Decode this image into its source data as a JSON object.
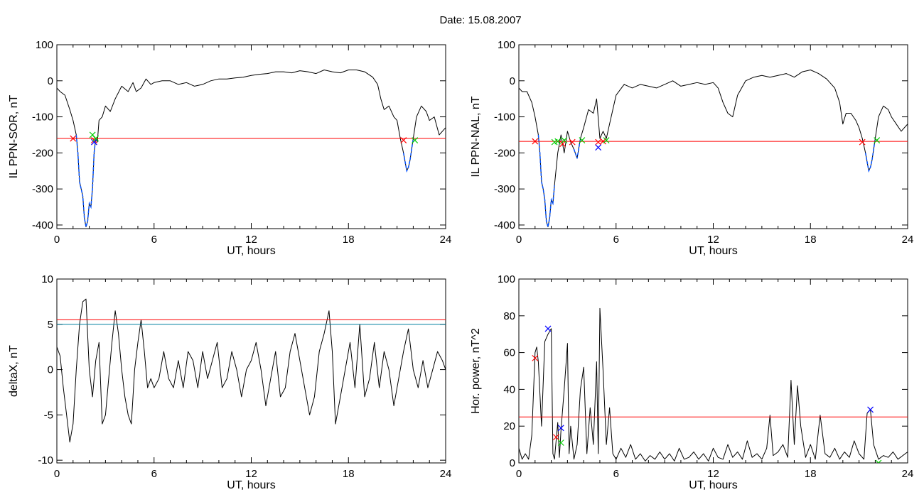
{
  "header": {
    "title": "Date:  15.08.2007"
  },
  "chart_data": [
    {
      "id": "il-ppn-sor",
      "type": "line",
      "xlabel": "UT, hours",
      "ylabel": "IL PPN-SOR, nT",
      "xlim": [
        0,
        24
      ],
      "ylim": [
        -410,
        100
      ],
      "xticks": [
        0,
        6,
        12,
        18,
        24
      ],
      "yticks": [
        -400,
        -300,
        -200,
        -100,
        0,
        100
      ],
      "threshold": {
        "value": -160,
        "color": "#ff0000"
      },
      "highlight_color": "#0050ff",
      "highlight_ranges": [
        [
          1.1,
          2.4
        ],
        [
          21.4,
          22.0
        ]
      ],
      "series": [
        {
          "color": "#000000",
          "x": [
            0,
            0.2,
            0.5,
            0.8,
            1.0,
            1.2,
            1.3,
            1.4,
            1.5,
            1.6,
            1.7,
            1.8,
            1.9,
            2.0,
            2.1,
            2.2,
            2.3,
            2.4,
            2.5,
            2.6,
            2.8,
            3.0,
            3.3,
            3.6,
            4.0,
            4.4,
            4.7,
            4.9,
            5.2,
            5.5,
            5.8,
            6.0,
            6.5,
            7.0,
            7.5,
            8.0,
            8.5,
            9.0,
            9.5,
            10.0,
            10.5,
            11.0,
            11.5,
            12.0,
            12.5,
            13.0,
            13.5,
            14.0,
            14.5,
            15.0,
            15.5,
            16.0,
            16.5,
            17.0,
            17.5,
            18.0,
            18.5,
            19.0,
            19.5,
            19.8,
            20.0,
            20.2,
            20.5,
            20.8,
            21.0,
            21.2,
            21.4,
            21.6,
            21.7,
            21.8,
            22.0,
            22.2,
            22.5,
            22.8,
            23.0,
            23.3,
            23.6,
            24.0
          ],
          "values": [
            -20,
            -30,
            -40,
            -80,
            -110,
            -150,
            -200,
            -280,
            -300,
            -320,
            -380,
            -405,
            -390,
            -340,
            -350,
            -300,
            -200,
            -160,
            -170,
            -110,
            -100,
            -70,
            -85,
            -50,
            -15,
            -30,
            -5,
            -30,
            -20,
            5,
            -10,
            -5,
            0,
            0,
            -10,
            -5,
            -15,
            -10,
            0,
            5,
            5,
            8,
            10,
            15,
            18,
            20,
            25,
            25,
            22,
            28,
            25,
            20,
            30,
            25,
            22,
            30,
            30,
            25,
            10,
            -10,
            -50,
            -80,
            -70,
            -100,
            -110,
            -160,
            -200,
            -250,
            -240,
            -220,
            -160,
            -100,
            -70,
            -85,
            -110,
            -100,
            -150,
            -130
          ]
        }
      ],
      "markers": [
        {
          "x": 1.0,
          "y": -160,
          "color": "#ff0000"
        },
        {
          "x": 2.2,
          "y": -150,
          "color": "#00cc00"
        },
        {
          "x": 2.3,
          "y": -165,
          "color": "#ff0000"
        },
        {
          "x": 2.3,
          "y": -170,
          "color": "#0000ff"
        },
        {
          "x": 2.4,
          "y": -160,
          "color": "#00cc00"
        },
        {
          "x": 21.4,
          "y": -165,
          "color": "#ff0000"
        },
        {
          "x": 22.1,
          "y": -165,
          "color": "#00cc00"
        }
      ]
    },
    {
      "id": "il-ppn-nal",
      "type": "line",
      "xlabel": "UT, hours",
      "ylabel": "IL PPN-NAL, nT",
      "xlim": [
        0,
        24
      ],
      "ylim": [
        -410,
        100
      ],
      "xticks": [
        0,
        6,
        12,
        18,
        24
      ],
      "yticks": [
        -400,
        -300,
        -200,
        -100,
        0,
        100
      ],
      "threshold": {
        "value": -168,
        "color": "#ff0000"
      },
      "highlight_color": "#0050ff",
      "highlight_ranges": [
        [
          1.1,
          2.3
        ],
        [
          3.3,
          3.8
        ],
        [
          4.9,
          5.1
        ],
        [
          21.4,
          22.0
        ]
      ],
      "series": [
        {
          "color": "#000000",
          "x": [
            0,
            0.2,
            0.5,
            0.8,
            1.0,
            1.2,
            1.3,
            1.4,
            1.5,
            1.6,
            1.7,
            1.8,
            1.9,
            2.0,
            2.1,
            2.2,
            2.4,
            2.6,
            2.8,
            3.0,
            3.2,
            3.4,
            3.6,
            3.8,
            4.0,
            4.3,
            4.6,
            4.8,
            5.0,
            5.2,
            5.4,
            5.6,
            5.8,
            6.0,
            6.5,
            7.0,
            7.5,
            8.0,
            8.5,
            9.0,
            9.5,
            10.0,
            10.5,
            11.0,
            11.5,
            12.0,
            12.3,
            12.6,
            12.9,
            13.2,
            13.5,
            14.0,
            14.5,
            15.0,
            15.5,
            16.0,
            16.5,
            17.0,
            17.5,
            18.0,
            18.5,
            19.0,
            19.5,
            19.8,
            20.0,
            20.2,
            20.5,
            20.8,
            21.0,
            21.2,
            21.4,
            21.6,
            21.7,
            21.8,
            22.0,
            22.2,
            22.5,
            22.8,
            23.0,
            23.3,
            23.6,
            24.0
          ],
          "values": [
            -20,
            -30,
            -30,
            -60,
            -100,
            -150,
            -200,
            -280,
            -300,
            -330,
            -390,
            -405,
            -380,
            -330,
            -340,
            -290,
            -200,
            -150,
            -200,
            -140,
            -170,
            -190,
            -215,
            -160,
            -130,
            -80,
            -90,
            -50,
            -160,
            -140,
            -160,
            -120,
            -80,
            -40,
            -10,
            -20,
            -10,
            -15,
            -20,
            -10,
            0,
            -15,
            -10,
            -5,
            -10,
            -5,
            -20,
            -60,
            -90,
            -100,
            -40,
            0,
            10,
            15,
            10,
            15,
            20,
            10,
            25,
            30,
            20,
            5,
            -20,
            -60,
            -120,
            -90,
            -90,
            -110,
            -130,
            -160,
            -200,
            -250,
            -240,
            -220,
            -160,
            -100,
            -70,
            -80,
            -100,
            -120,
            -140,
            -120
          ]
        }
      ],
      "markers": [
        {
          "x": 1.0,
          "y": -168,
          "color": "#ff0000"
        },
        {
          "x": 2.2,
          "y": -170,
          "color": "#00cc00"
        },
        {
          "x": 2.4,
          "y": -168,
          "color": "#00cc00"
        },
        {
          "x": 2.7,
          "y": -175,
          "color": "#ff0000"
        },
        {
          "x": 2.8,
          "y": -165,
          "color": "#00cc00"
        },
        {
          "x": 3.3,
          "y": -170,
          "color": "#ff0000"
        },
        {
          "x": 3.9,
          "y": -165,
          "color": "#00cc00"
        },
        {
          "x": 4.9,
          "y": -170,
          "color": "#ff0000"
        },
        {
          "x": 4.9,
          "y": -185,
          "color": "#0000ff"
        },
        {
          "x": 5.2,
          "y": -168,
          "color": "#ff0000"
        },
        {
          "x": 5.4,
          "y": -165,
          "color": "#00cc00"
        },
        {
          "x": 21.2,
          "y": -170,
          "color": "#ff0000"
        },
        {
          "x": 22.1,
          "y": -165,
          "color": "#00cc00"
        }
      ]
    },
    {
      "id": "deltax",
      "type": "line",
      "xlabel": "UT, hours",
      "ylabel": "deltaX, nT",
      "xlim": [
        0,
        24
      ],
      "ylim": [
        -10.3,
        10
      ],
      "xticks": [
        0,
        6,
        12,
        18,
        24
      ],
      "yticks": [
        -10,
        -5,
        0,
        5,
        10
      ],
      "ytick_labels": [
        "-10",
        "-5",
        "0",
        "5",
        "10"
      ],
      "thresholds": [
        {
          "value": 5.5,
          "color": "#ff0000"
        },
        {
          "value": 5.0,
          "color": "#0080a0"
        }
      ],
      "series": [
        {
          "color": "#000000",
          "x": [
            0,
            0.2,
            0.4,
            0.6,
            0.8,
            1.0,
            1.2,
            1.4,
            1.6,
            1.8,
            2.0,
            2.2,
            2.4,
            2.6,
            2.8,
            3.0,
            3.2,
            3.4,
            3.6,
            3.8,
            4.0,
            4.2,
            4.4,
            4.6,
            4.8,
            5.0,
            5.2,
            5.4,
            5.6,
            5.8,
            6.0,
            6.3,
            6.6,
            6.9,
            7.2,
            7.5,
            7.8,
            8.1,
            8.4,
            8.7,
            9.0,
            9.3,
            9.6,
            9.9,
            10.2,
            10.5,
            10.8,
            11.1,
            11.4,
            11.7,
            12.0,
            12.3,
            12.6,
            12.9,
            13.2,
            13.5,
            13.8,
            14.1,
            14.4,
            14.7,
            15.0,
            15.3,
            15.6,
            15.9,
            16.2,
            16.5,
            16.8,
            17.0,
            17.2,
            17.5,
            17.8,
            18.1,
            18.4,
            18.7,
            19.0,
            19.3,
            19.6,
            19.9,
            20.2,
            20.5,
            20.8,
            21.1,
            21.4,
            21.7,
            22.0,
            22.3,
            22.6,
            22.9,
            23.2,
            23.5,
            23.8,
            24.0
          ],
          "values": [
            2.5,
            1.5,
            -2,
            -5,
            -8,
            -6,
            0,
            5,
            7.5,
            7.8,
            0,
            -3,
            1,
            3,
            -6,
            -5,
            -1,
            3,
            6.5,
            4,
            0,
            -3,
            -5,
            -6,
            0,
            3,
            5.5,
            2,
            -2,
            -1,
            -2,
            -1,
            2,
            -1,
            -2,
            1,
            -2,
            2,
            1,
            -2,
            2,
            -1,
            1,
            3,
            -2,
            -1,
            2,
            0,
            -3,
            0,
            1,
            3,
            0,
            -4,
            -1,
            2,
            -3,
            -2,
            2,
            4,
            1,
            -2,
            -5,
            -3,
            2,
            4,
            6.5,
            2,
            -6,
            -3,
            0,
            3,
            -2,
            5,
            -3,
            -1,
            3,
            -2,
            2,
            0,
            -4,
            -1,
            2,
            4.5,
            0,
            -2,
            1,
            -2,
            0,
            2,
            1,
            0
          ]
        }
      ],
      "markers": []
    },
    {
      "id": "hor-power",
      "type": "line",
      "xlabel": "UT, hours",
      "ylabel": "Hor. power, nT^2",
      "xlim": [
        0,
        24
      ],
      "ylim": [
        0,
        100
      ],
      "xticks": [
        0,
        6,
        12,
        18,
        24
      ],
      "yticks": [
        0,
        20,
        40,
        60,
        80,
        100
      ],
      "threshold": {
        "value": 25,
        "color": "#ff0000"
      },
      "series": [
        {
          "color": "#000000",
          "x": [
            0,
            0.2,
            0.4,
            0.6,
            0.8,
            1.0,
            1.1,
            1.2,
            1.4,
            1.6,
            1.8,
            2.0,
            2.1,
            2.2,
            2.4,
            2.5,
            2.6,
            2.8,
            3.0,
            3.1,
            3.2,
            3.4,
            3.6,
            3.8,
            4.0,
            4.2,
            4.4,
            4.6,
            4.8,
            4.9,
            5.0,
            5.2,
            5.4,
            5.6,
            5.8,
            6.0,
            6.3,
            6.6,
            6.9,
            7.2,
            7.5,
            7.8,
            8.1,
            8.4,
            8.7,
            9.0,
            9.3,
            9.6,
            9.9,
            10.2,
            10.5,
            10.8,
            11.1,
            11.4,
            11.7,
            12.0,
            12.3,
            12.6,
            12.9,
            13.2,
            13.5,
            13.8,
            14.1,
            14.4,
            14.7,
            15.0,
            15.3,
            15.5,
            15.7,
            16.0,
            16.3,
            16.6,
            16.8,
            17.0,
            17.2,
            17.4,
            17.7,
            18.0,
            18.3,
            18.6,
            18.9,
            19.2,
            19.5,
            19.8,
            20.1,
            20.4,
            20.7,
            21.0,
            21.3,
            21.5,
            21.7,
            21.9,
            22.2,
            22.5,
            22.8,
            23.1,
            23.4,
            23.7,
            24.0
          ],
          "values": [
            8,
            2,
            5,
            2,
            15,
            60,
            63,
            55,
            20,
            66,
            70,
            73,
            5,
            2,
            22,
            3,
            18,
            40,
            65,
            5,
            20,
            2,
            10,
            40,
            52,
            5,
            30,
            10,
            55,
            5,
            84,
            50,
            10,
            30,
            5,
            2,
            8,
            3,
            10,
            2,
            5,
            1,
            4,
            2,
            6,
            2,
            5,
            1,
            8,
            2,
            3,
            6,
            2,
            5,
            1,
            8,
            3,
            2,
            10,
            3,
            6,
            2,
            12,
            3,
            5,
            2,
            8,
            26,
            4,
            6,
            10,
            3,
            45,
            10,
            42,
            20,
            3,
            10,
            2,
            26,
            5,
            3,
            8,
            2,
            6,
            3,
            12,
            5,
            2,
            27,
            29,
            10,
            2,
            4,
            3,
            6,
            2,
            4,
            6
          ]
        }
      ],
      "markers": [
        {
          "x": 1.0,
          "y": 57,
          "color": "#ff0000"
        },
        {
          "x": 1.8,
          "y": 73,
          "color": "#0000ff"
        },
        {
          "x": 2.3,
          "y": 14,
          "color": "#ff0000"
        },
        {
          "x": 2.6,
          "y": 19,
          "color": "#0000ff"
        },
        {
          "x": 2.6,
          "y": 11,
          "color": "#00cc00"
        },
        {
          "x": 21.7,
          "y": 29,
          "color": "#0000ff"
        },
        {
          "x": 22.2,
          "y": 0,
          "color": "#00cc00"
        }
      ]
    }
  ]
}
